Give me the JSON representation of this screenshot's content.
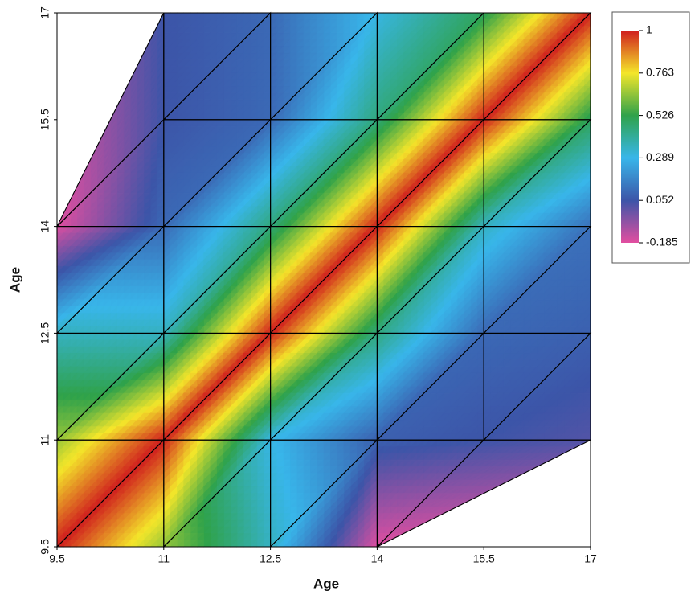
{
  "chart_data": {
    "type": "surface",
    "x_label": "Age",
    "y_label": "Age",
    "x": [
      9.5,
      11,
      12.5,
      14,
      15.5,
      17
    ],
    "y": [
      9.5,
      11,
      12.5,
      14,
      15.5,
      17
    ],
    "z": [
      [
        1,
        0.65,
        0.35,
        -0.18,
        null,
        null
      ],
      [
        0.65,
        1,
        0.3,
        0.08,
        0.05,
        0.02
      ],
      [
        0.35,
        0.35,
        1,
        0.45,
        0.1,
        0.08
      ],
      [
        -0.18,
        0.1,
        0.45,
        1,
        0.35,
        0.12
      ],
      [
        null,
        0.05,
        0.1,
        0.45,
        1,
        0.5
      ],
      [
        null,
        0.05,
        0.1,
        0.3,
        0.5,
        1
      ]
    ],
    "xlim": [
      9.5,
      17
    ],
    "ylim": [
      9.5,
      17
    ],
    "xticks": [
      9.5,
      11,
      12.5,
      14,
      15.5,
      17
    ],
    "yticks": [
      9.5,
      11,
      12.5,
      14,
      15.5,
      17
    ],
    "zlim": [
      -0.185,
      1
    ],
    "zticks": [
      -0.185,
      0.052,
      0.289,
      0.526,
      0.763,
      1
    ],
    "colors": [
      "#e24ea0",
      "#3c55a8",
      "#38b6ea",
      "#2fa24a",
      "#f4e62a",
      "#d01e1e"
    ]
  }
}
